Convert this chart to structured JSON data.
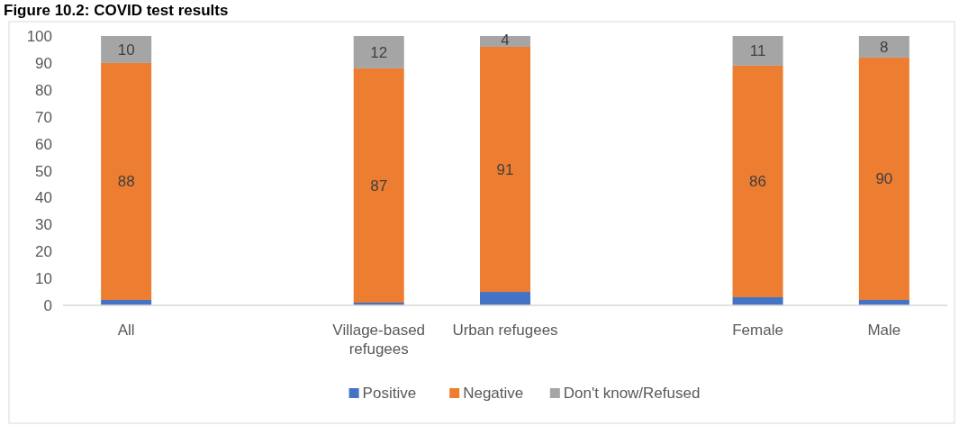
{
  "chart_data": {
    "type": "bar",
    "title": "Figure 10.2: COVID test results",
    "stacked": true,
    "categories": [
      "All",
      null,
      "Village-based refugees",
      "Urban refugees",
      null,
      "Female",
      "Male"
    ],
    "series": [
      {
        "name": "Positive",
        "color": "#4472c4",
        "values": [
          2,
          null,
          1,
          5,
          null,
          3,
          2
        ]
      },
      {
        "name": "Negative",
        "color": "#ed7d31",
        "values": [
          88,
          null,
          87,
          91,
          null,
          86,
          90
        ],
        "value_labels": [
          "88",
          null,
          "87",
          "91",
          null,
          "86",
          "90"
        ]
      },
      {
        "name": "Don't know/Refused",
        "color": "#a5a5a5",
        "values": [
          10,
          null,
          12,
          4,
          null,
          11,
          8
        ],
        "value_labels": [
          "10",
          null,
          "12",
          "4",
          null,
          "11",
          "8"
        ]
      }
    ],
    "ylim": [
      0,
      100
    ],
    "yticks": [
      0,
      10,
      20,
      30,
      40,
      50,
      60,
      70,
      80,
      90,
      100
    ],
    "grid": false,
    "legend": "bottom"
  }
}
